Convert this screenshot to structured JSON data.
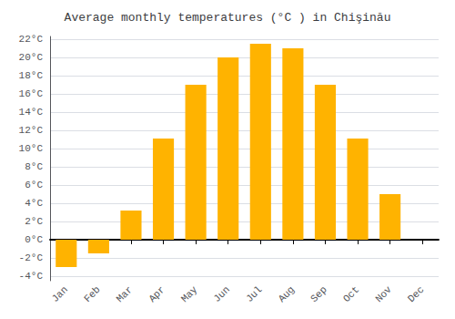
{
  "chart_data": {
    "type": "bar",
    "title": "Average monthly temperatures (°C ) in Chişinău",
    "categories": [
      "Jan",
      "Feb",
      "Mar",
      "Apr",
      "May",
      "Jun",
      "Jul",
      "Aug",
      "Sep",
      "Oct",
      "Nov",
      "Dec"
    ],
    "values": [
      -3.0,
      -1.5,
      3.2,
      11.1,
      17.0,
      20.0,
      21.5,
      21.0,
      17.0,
      11.1,
      5.0,
      0.0
    ],
    "color": "#FFB300",
    "ylim": [
      -4.5,
      22.3
    ],
    "yticks": [
      {
        "value": -4,
        "label": "-4°C"
      },
      {
        "value": -2,
        "label": "-2°C"
      },
      {
        "value": 0,
        "label": "0°C"
      },
      {
        "value": 2,
        "label": "2°C"
      },
      {
        "value": 4,
        "label": "4°C"
      },
      {
        "value": 6,
        "label": "6°C"
      },
      {
        "value": 8,
        "label": "8°C"
      },
      {
        "value": 10,
        "label": "10°C"
      },
      {
        "value": 12,
        "label": "12°C"
      },
      {
        "value": 14,
        "label": "14°C"
      },
      {
        "value": 16,
        "label": "16°C"
      },
      {
        "value": 18,
        "label": "18°C"
      },
      {
        "value": 20,
        "label": "20°C"
      },
      {
        "value": 22,
        "label": "22°C"
      }
    ],
    "grid": true
  }
}
